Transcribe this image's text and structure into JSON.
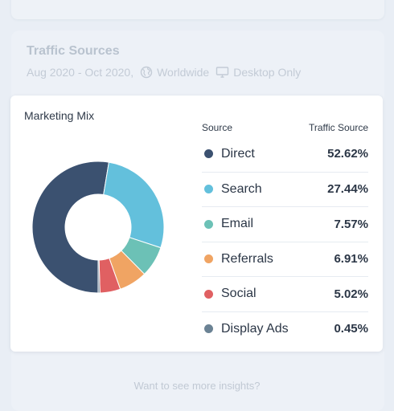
{
  "section": {
    "title": "Traffic Sources",
    "date_range": "Aug 2020 - Oct 2020,",
    "region": "Worldwide",
    "device": "Desktop Only"
  },
  "card": {
    "title": "Marketing Mix",
    "source_header": "Source",
    "traffic_header": "Traffic Source"
  },
  "rows": [
    {
      "label": "Direct",
      "pct": "52.62%",
      "color": "#3b5170"
    },
    {
      "label": "Search",
      "pct": "27.44%",
      "color": "#63c0dc"
    },
    {
      "label": "Email",
      "pct": "7.57%",
      "color": "#6cc1b6"
    },
    {
      "label": "Referrals",
      "pct": "6.91%",
      "color": "#f0a463"
    },
    {
      "label": "Social",
      "pct": "5.02%",
      "color": "#e06062"
    },
    {
      "label": "Display Ads",
      "pct": "0.45%",
      "color": "#6b8294"
    }
  ],
  "chart_data": {
    "type": "pie",
    "title": "Marketing Mix",
    "categories": [
      "Direct",
      "Search",
      "Email",
      "Referrals",
      "Social",
      "Display Ads"
    ],
    "values": [
      52.62,
      27.44,
      7.57,
      6.91,
      5.02,
      0.45
    ],
    "colors": [
      "#3b5170",
      "#63c0dc",
      "#6cc1b6",
      "#f0a463",
      "#e06062",
      "#6b8294"
    ],
    "donut": true
  },
  "footer": {
    "link": "Want to see more insights?"
  }
}
